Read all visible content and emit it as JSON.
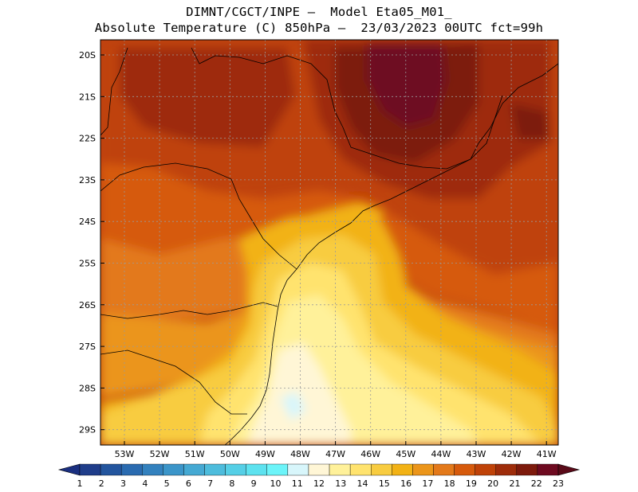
{
  "header": {
    "title_line1": "DIMNT/CGCT/INPE —  Model Eta05_M01_",
    "title_line2": "Absolute Temperature (C) 850hPa —  23/03/2023 00UTC fct=99h"
  },
  "axes": {
    "lat_labels": [
      "20S",
      "21S",
      "22S",
      "23S",
      "24S",
      "25S",
      "26S",
      "27S",
      "28S",
      "29S"
    ],
    "lon_labels": [
      "53W",
      "52W",
      "51W",
      "50W",
      "49W",
      "48W",
      "47W",
      "46W",
      "45W",
      "44W",
      "43W",
      "42W",
      "41W"
    ]
  },
  "colorbar": {
    "labels": [
      "1",
      "2",
      "3",
      "4",
      "5",
      "6",
      "7",
      "8",
      "9",
      "10",
      "11",
      "12",
      "13",
      "14",
      "15",
      "16",
      "17",
      "18",
      "19",
      "20",
      "21",
      "22",
      "23"
    ],
    "colors": [
      "#1f3d8a",
      "#23559e",
      "#2a6bb0",
      "#3381be",
      "#3b95c9",
      "#45a9d3",
      "#4dbcdc",
      "#55cfe6",
      "#5de2ef",
      "#6cf4f9",
      "#d8f6fb",
      "#fff6d6",
      "#fff19a",
      "#ffe36e",
      "#f8cc40",
      "#f2b215",
      "#eb951a",
      "#e3791a",
      "#d65a0c",
      "#bf4208",
      "#9e2c0a",
      "#7d1a0c",
      "#6e0a20"
    ],
    "low_end_color": "#1a2f80",
    "high_end_color": "#5a0a18"
  },
  "map": {
    "grid": "dotted",
    "field": "temperature 850hPa",
    "colors": {
      "c11": "#d8f6fb",
      "c12": "#fff6d6",
      "c13": "#fff19a",
      "c14": "#ffe36e",
      "c15": "#f8cc40",
      "c16": "#f2b215",
      "c17": "#eb951a",
      "c18": "#e3791a",
      "c19": "#d65a0c",
      "c20": "#bf4208",
      "c21": "#9e2c0a",
      "c22": "#7d1a0c",
      "c23": "#6e0a20"
    }
  }
}
